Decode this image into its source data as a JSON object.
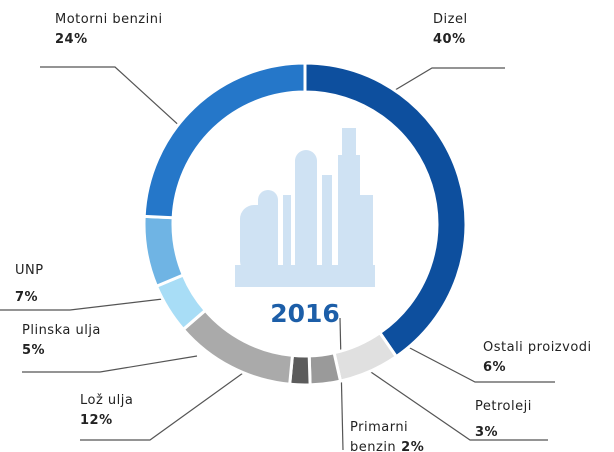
{
  "chart_data": {
    "type": "donut",
    "title": "2016",
    "categories": [
      "Dizel",
      "Ostali proizvodi",
      "Petroleji",
      "Primarni benzin",
      "Lož ulja",
      "Plinska ulja",
      "UNP",
      "Motorni benzini"
    ],
    "values": [
      40,
      6,
      3,
      2,
      12,
      5,
      7,
      24
    ],
    "value_labels": [
      "40%",
      "6%",
      "3%",
      "2%",
      "12%",
      "5%",
      "7%",
      "24%"
    ],
    "colors": [
      "#0d4f9e",
      "#e0e0e0",
      "#9a9a9a",
      "#5c5c5c",
      "#aaaaaa",
      "#a8ddf6",
      "#6fb4e4",
      "#2577c9"
    ]
  }
}
